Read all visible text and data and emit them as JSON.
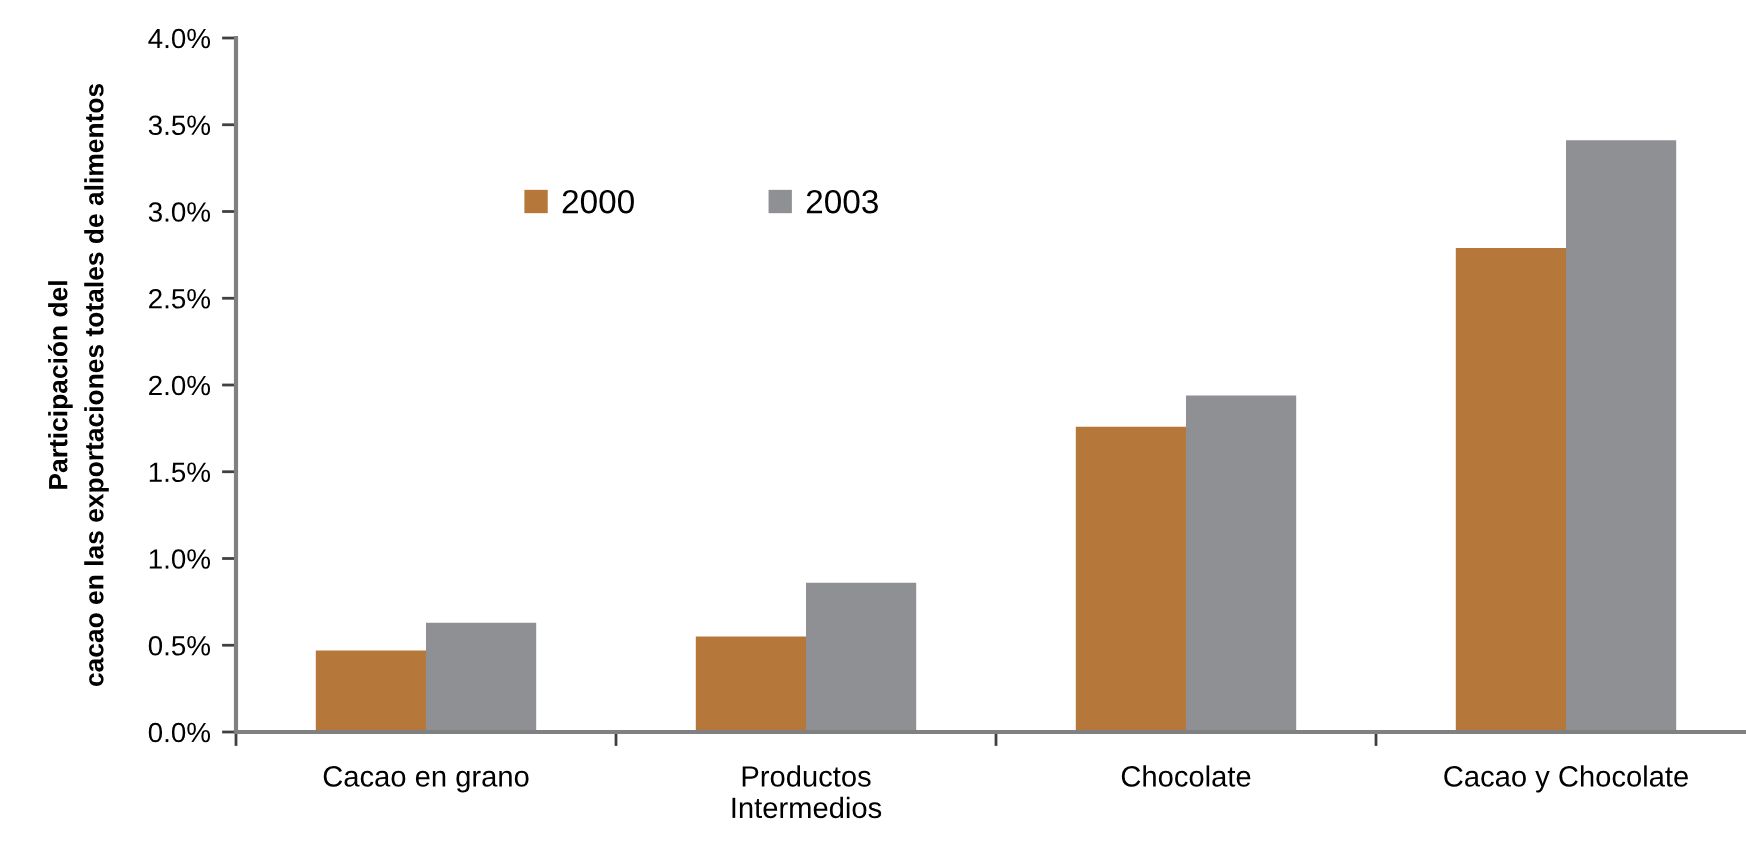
{
  "chart_data": {
    "type": "bar",
    "ylabel": "Participación del\ncacao en las exportaciones totales de alimentos",
    "categories": [
      "Cacao en grano",
      "Productos\nIntermedios",
      "Chocolate",
      "Cacao y Chocolate"
    ],
    "series": [
      {
        "name": "2000",
        "color": "#b5783a",
        "values": [
          0.47,
          0.55,
          1.76,
          2.79
        ]
      },
      {
        "name": "2003",
        "color": "#8e9094",
        "values": [
          0.63,
          0.86,
          1.94,
          3.41
        ]
      }
    ],
    "ylim": [
      0,
      4.0
    ],
    "yticks": [
      {
        "value": 0,
        "label": "0.0%"
      },
      {
        "value": 0.5,
        "label": "0.5%"
      },
      {
        "value": 1.0,
        "label": "1.0%"
      },
      {
        "value": 1.5,
        "label": "1.5%"
      },
      {
        "value": 2.0,
        "label": "2.0%"
      },
      {
        "value": 2.5,
        "label": "2.5%"
      },
      {
        "value": 3.0,
        "label": "3.0%"
      },
      {
        "value": 3.5,
        "label": "3.5%"
      },
      {
        "value": 4.0,
        "label": "4.0%"
      }
    ],
    "grid": false,
    "legend": "top left"
  }
}
